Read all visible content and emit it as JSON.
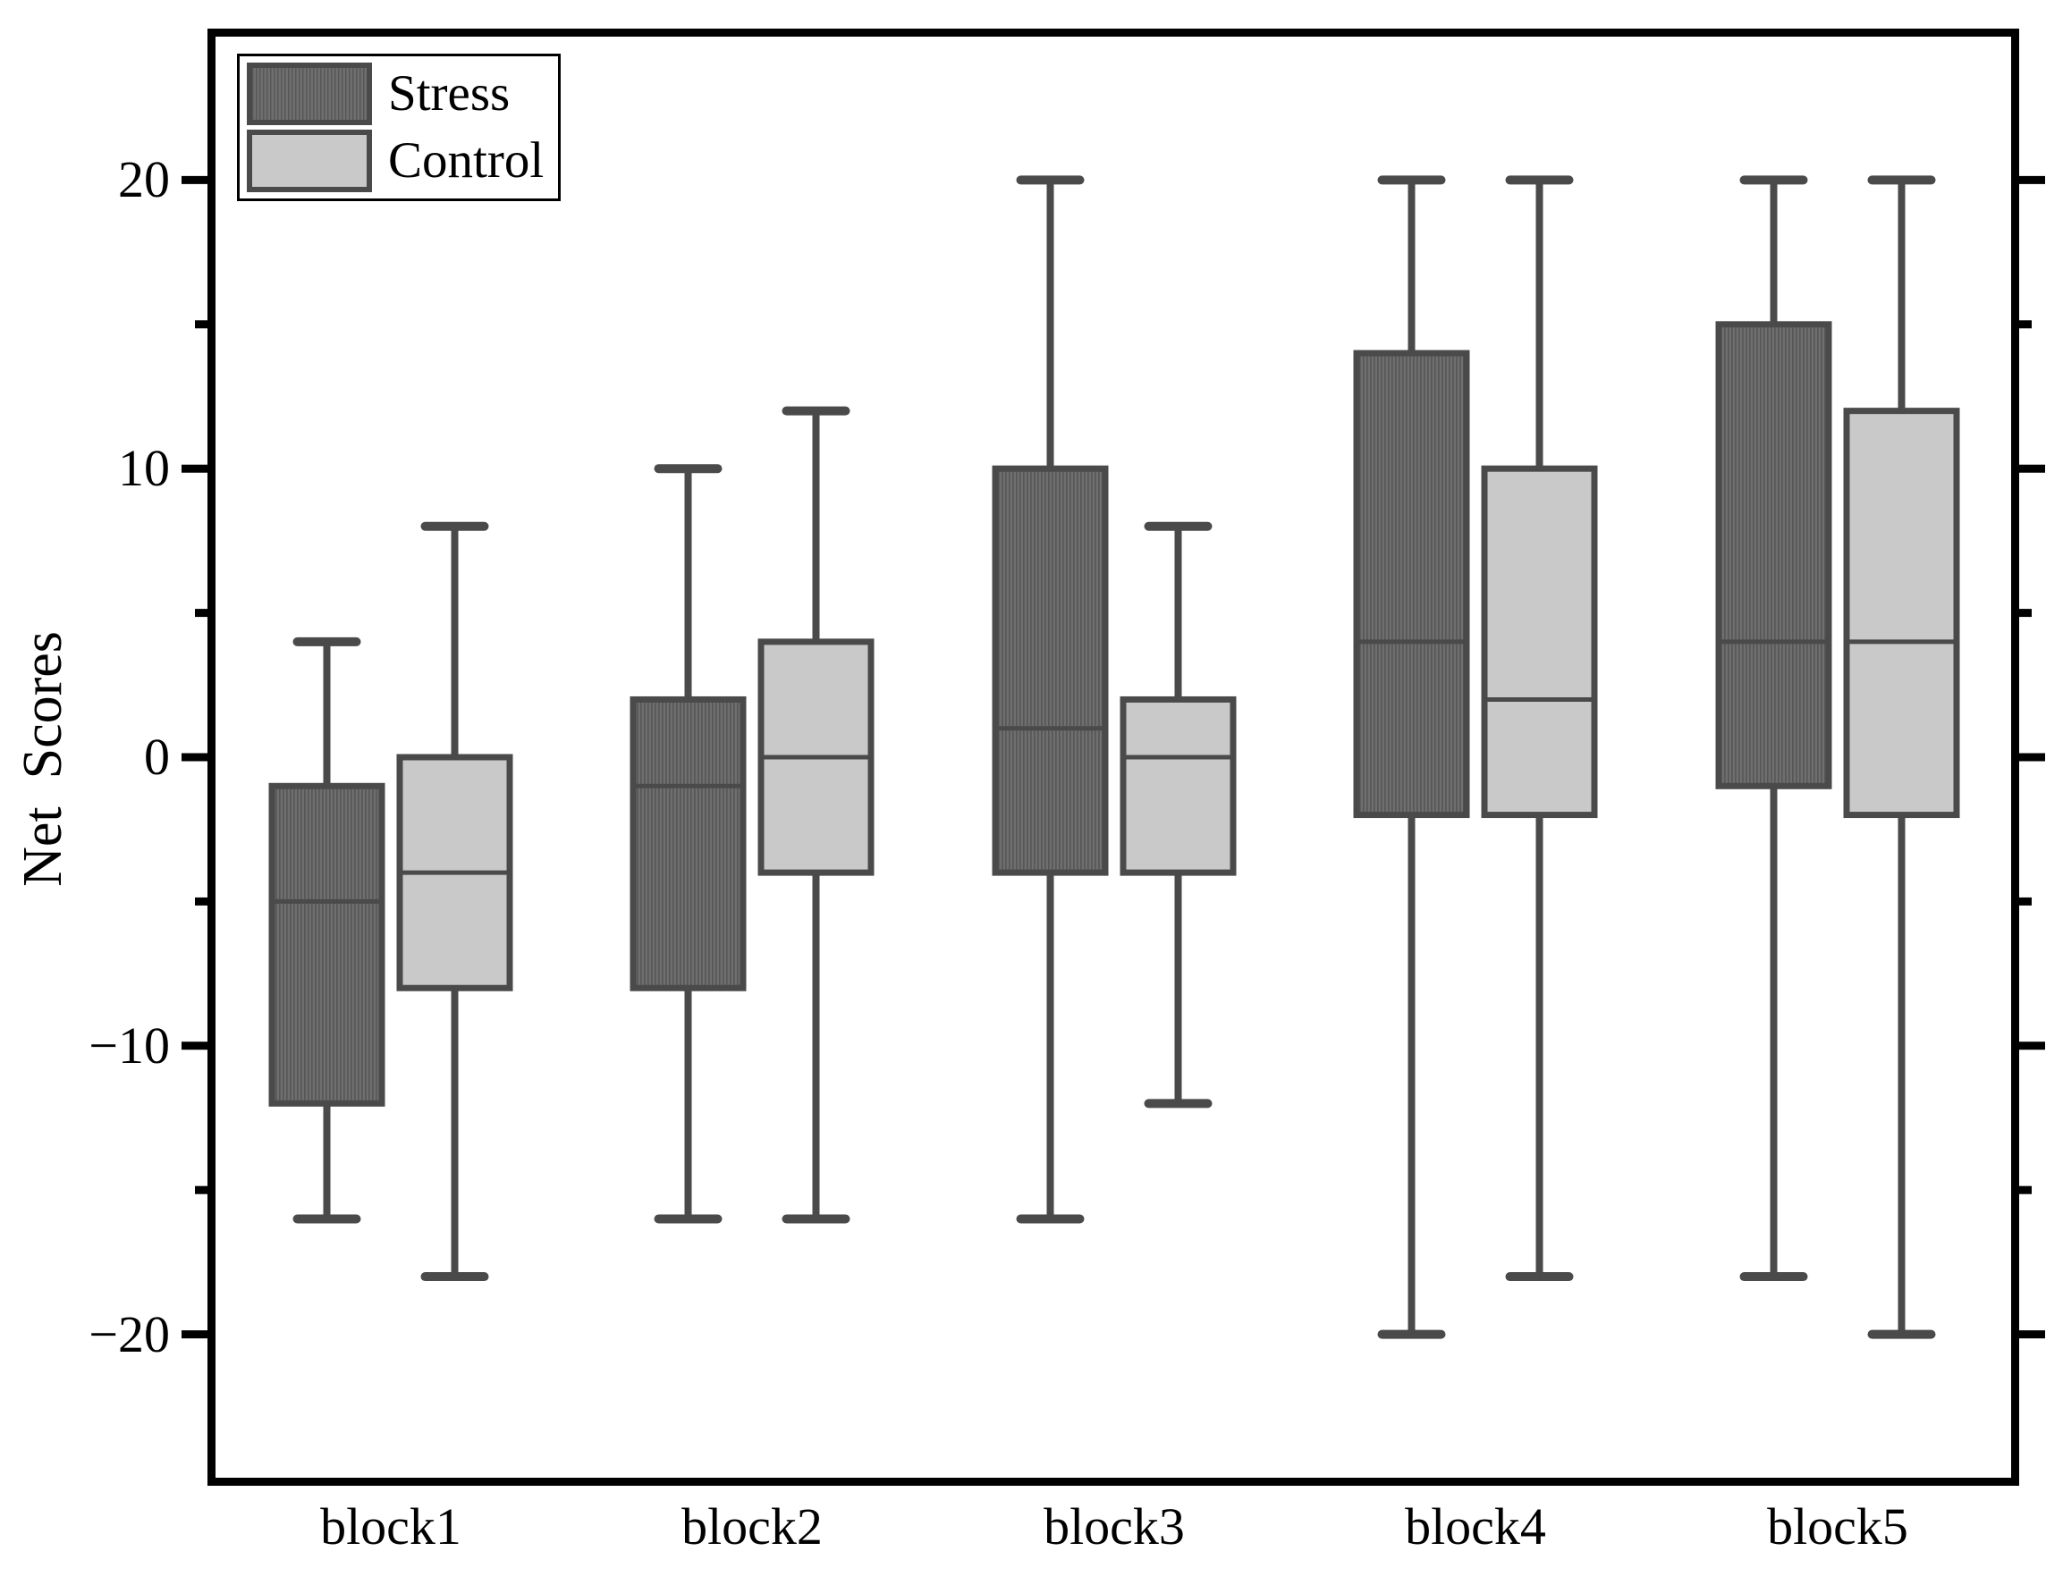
{
  "axis": {
    "y_title": "Net  Scores",
    "y_tick_labels": [
      "20",
      "10",
      "0",
      "−10",
      "−20"
    ],
    "x_labels": [
      "block1",
      "block2",
      "block3",
      "block4",
      "block5"
    ]
  },
  "colors": {
    "frame": "#000000",
    "box_line": "#4a4a4a",
    "stress_hatch_light": "#6f6f6f",
    "stress_hatch_dark": "#575757",
    "control_fill": "#c9c9c9",
    "legend_background": "#ffffff"
  },
  "chart_data": {
    "type": "boxplot",
    "title": "",
    "xlabel": "",
    "ylabel": "Net  Scores",
    "categories": [
      "block1",
      "block2",
      "block3",
      "block4",
      "block5"
    ],
    "ylim": [
      -25,
      25
    ],
    "yticks_major": [
      20,
      10,
      0,
      -10,
      -20
    ],
    "yticks_minor": [
      15,
      5,
      -5,
      -15
    ],
    "grid": false,
    "legend_position": "top-left",
    "legend_entries": [
      "Stress",
      "Control"
    ],
    "series": [
      {
        "name": "Stress",
        "style": "dark-vertical-hatch",
        "boxes": [
          {
            "category": "block1",
            "whisker_low": -16,
            "q1": -12,
            "median": -5,
            "q3": -1,
            "whisker_high": 4
          },
          {
            "category": "block2",
            "whisker_low": -16,
            "q1": -8,
            "median": -1,
            "q3": 2,
            "whisker_high": 10
          },
          {
            "category": "block3",
            "whisker_low": -16,
            "q1": -4,
            "median": 1,
            "q3": 10,
            "whisker_high": 20
          },
          {
            "category": "block4",
            "whisker_low": -20,
            "q1": -2,
            "median": 4,
            "q3": 14,
            "whisker_high": 20
          },
          {
            "category": "block5",
            "whisker_low": -18,
            "q1": -1,
            "median": 4,
            "q3": 15,
            "whisker_high": 20
          }
        ]
      },
      {
        "name": "Control",
        "style": "light-solid",
        "boxes": [
          {
            "category": "block1",
            "whisker_low": -18,
            "q1": -8,
            "median": -4,
            "q3": 0,
            "whisker_high": 8
          },
          {
            "category": "block2",
            "whisker_low": -16,
            "q1": -4,
            "median": 0,
            "q3": 4,
            "whisker_high": 12
          },
          {
            "category": "block3",
            "whisker_low": -12,
            "q1": -4,
            "median": 0,
            "q3": 2,
            "whisker_high": 8
          },
          {
            "category": "block4",
            "whisker_low": -18,
            "q1": -2,
            "median": 2,
            "q3": 10,
            "whisker_high": 20
          },
          {
            "category": "block5",
            "whisker_low": -20,
            "q1": -2,
            "median": 4,
            "q3": 12,
            "whisker_high": 20
          }
        ]
      }
    ]
  }
}
